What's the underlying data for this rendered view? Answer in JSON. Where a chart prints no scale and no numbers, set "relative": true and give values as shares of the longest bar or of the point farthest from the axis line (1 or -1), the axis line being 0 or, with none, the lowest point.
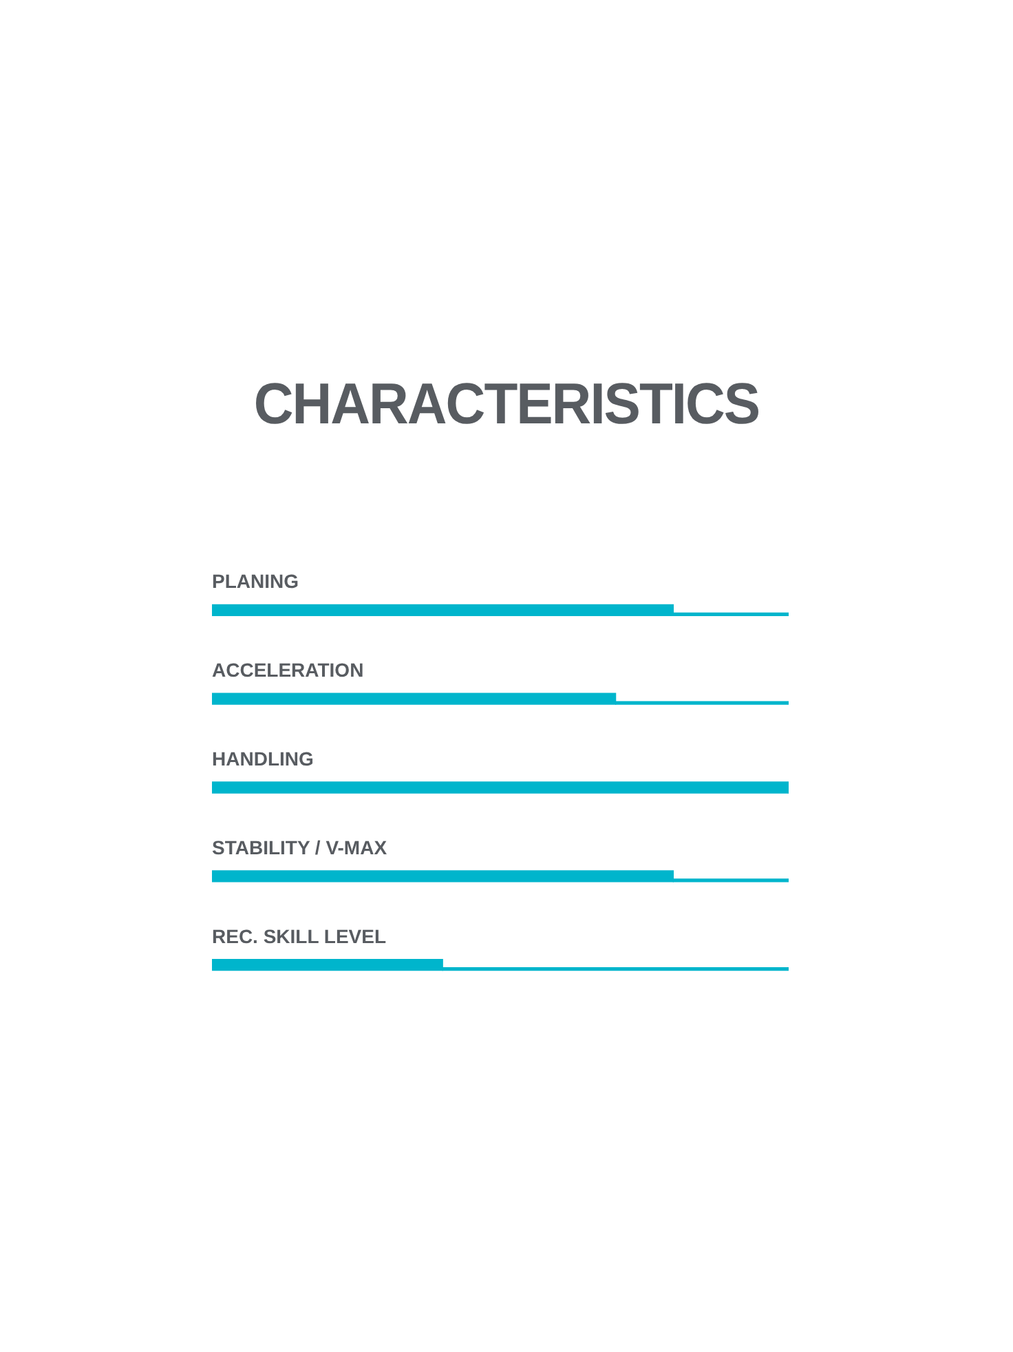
{
  "chart_data": {
    "type": "bar",
    "orientation": "horizontal",
    "relative": true,
    "stacked": true,
    "title": "CHARACTERISTICS",
    "categories": [
      "PLANING",
      "ACCELERATION",
      "HANDLING",
      "STABILITY / V-MAX",
      "REC. SKILL LEVEL"
    ],
    "series": [
      {
        "color": "#00b5cc",
        "values": [
          0.8,
          0.7,
          1,
          0.8,
          0.4
        ]
      },
      {
        "color": "#00b5cc",
        "values": [
          0.2,
          0.3,
          0,
          0.2,
          0.6
        ]
      }
    ]
  }
}
